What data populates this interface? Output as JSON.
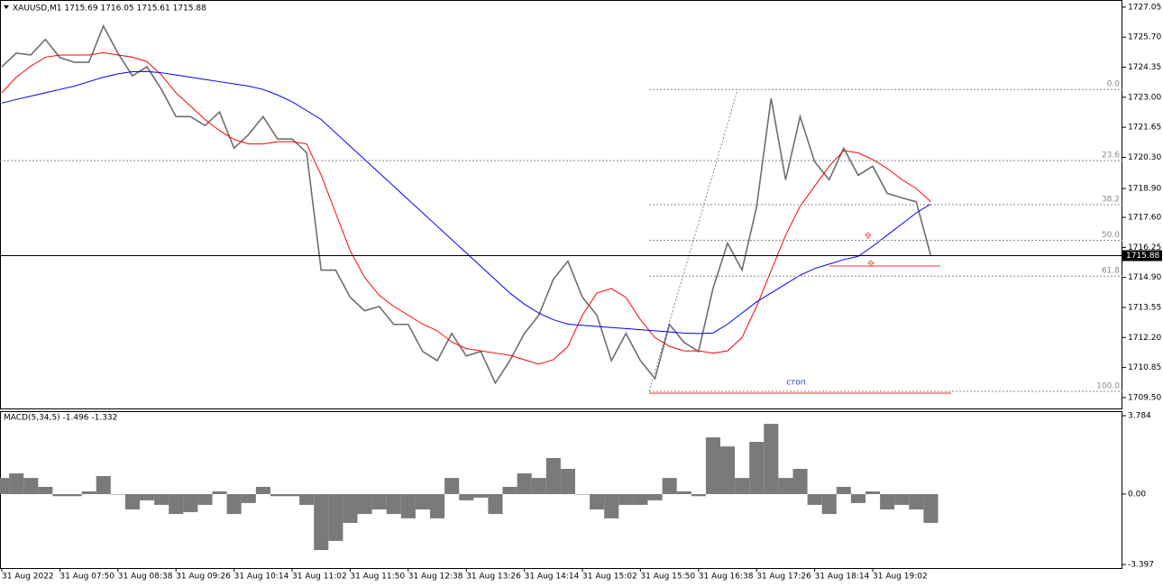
{
  "chart_data": [
    {
      "type": "line",
      "title": "XAUUSD,M1  1715.69 1716.05 1715.61 1715.88",
      "series": [
        {
          "color": "#6e6e6e",
          "values": [
            1724.37,
            1724.98,
            1724.9,
            1725.6,
            1724.78,
            1724.57,
            1724.57,
            1726.2,
            1724.98,
            1723.96,
            1724.37,
            1723.35,
            1722.13,
            1722.13,
            1721.73,
            1722.34,
            1720.71,
            1721.32,
            1722.13,
            1721.12,
            1721.12,
            1720.51,
            1715.23,
            1715.23,
            1714.01,
            1713.4,
            1713.6,
            1712.79,
            1712.79,
            1711.57,
            1711.16,
            1712.38,
            1711.37,
            1711.57,
            1710.15,
            1711.16,
            1712.38,
            1713.2,
            1714.82,
            1715.63,
            1714.01,
            1713.2,
            1711.16,
            1712.38,
            1711.16,
            1710.35,
            1712.79,
            1711.98,
            1711.57,
            1714.41,
            1716.44,
            1715.23,
            1718.07,
            1722.95,
            1719.29,
            1722.13,
            1720.1,
            1719.29,
            1720.71,
            1719.49,
            1719.9,
            1718.68,
            1718.48,
            1718.3,
            1715.88
          ]
        },
        {
          "color": "#ff0000",
          "values": [
            1723.2,
            1723.9,
            1724.4,
            1724.8,
            1724.9,
            1724.9,
            1724.9,
            1725.0,
            1724.9,
            1724.8,
            1724.6,
            1724.0,
            1723.2,
            1722.6,
            1722.0,
            1721.5,
            1721.1,
            1720.9,
            1720.9,
            1721.0,
            1721.0,
            1720.9,
            1719.5,
            1717.8,
            1716.1,
            1714.9,
            1714.1,
            1713.6,
            1713.2,
            1712.8,
            1712.5,
            1712.0,
            1711.7,
            1711.6,
            1711.5,
            1711.4,
            1711.2,
            1711.0,
            1711.2,
            1711.8,
            1713.2,
            1714.2,
            1714.4,
            1714.0,
            1713.0,
            1712.2,
            1711.8,
            1711.6,
            1711.6,
            1711.5,
            1711.6,
            1712.2,
            1713.6,
            1715.2,
            1716.8,
            1718.1,
            1719.0,
            1719.9,
            1720.6,
            1720.5,
            1720.2,
            1719.8,
            1719.3,
            1718.9,
            1718.3
          ]
        },
        {
          "color": "#0000ff",
          "values": [
            1722.74,
            1722.9,
            1723.05,
            1723.2,
            1723.35,
            1723.5,
            1723.7,
            1723.9,
            1724.05,
            1724.15,
            1724.16,
            1724.1,
            1724.0,
            1723.9,
            1723.8,
            1723.7,
            1723.6,
            1723.5,
            1723.35,
            1723.1,
            1722.8,
            1722.4,
            1722.0,
            1721.4,
            1720.8,
            1720.2,
            1719.6,
            1719.0,
            1718.4,
            1717.8,
            1717.2,
            1716.6,
            1716.0,
            1715.4,
            1714.8,
            1714.2,
            1713.7,
            1713.3,
            1713.0,
            1712.8,
            1712.75,
            1712.7,
            1712.65,
            1712.6,
            1712.55,
            1712.5,
            1712.45,
            1712.4,
            1712.38,
            1712.4,
            1712.8,
            1713.3,
            1713.8,
            1714.2,
            1714.6,
            1715.0,
            1715.3,
            1715.5,
            1715.7,
            1715.85,
            1716.3,
            1716.8,
            1717.3,
            1717.8,
            1718.2
          ]
        }
      ],
      "ylim": [
        1709.01,
        1727.33
      ],
      "yticks": [
        1727.05,
        {
          "value": 1725.7,
          "label": "1725.70"
        },
        1724.35,
        {
          "value": 1723,
          "label": "1723.00"
        },
        1721.65,
        {
          "value": 1720.3,
          "label": "1720.30"
        },
        {
          "value": 1718.9,
          "label": "1718.90"
        },
        {
          "value": 1717.6,
          "label": "1717.60"
        },
        1716.25,
        {
          "value": 1714.9,
          "label": "1714.90"
        },
        1713.55,
        {
          "value": 1712.2,
          "label": "1712.20"
        },
        1710.85,
        {
          "value": 1709.5,
          "label": "1709.50"
        }
      ],
      "current_price": 1715.88,
      "fib_levels": [
        {
          "value": 1723.35,
          "label": "0.0"
        },
        {
          "value": 1720.15,
          "label": "23.6"
        },
        {
          "value": 1718.17,
          "label": "38.2"
        },
        {
          "value": 1716.57,
          "label": "50.0"
        },
        {
          "value": 1714.96,
          "label": "61.8"
        },
        {
          "value": 1709.78,
          "label": "100.0"
        }
      ],
      "annotation": "стоп"
    },
    {
      "type": "bar",
      "title": "MACD(5,34,5) -1.496 -1.332",
      "color": "#7a7a7a",
      "categories": [
        "31 Aug 2022",
        null,
        null,
        null,
        "31 Aug 07:50",
        null,
        null,
        null,
        "31 Aug 08:38",
        null,
        null,
        null,
        "31 Aug 09:26",
        null,
        null,
        null,
        "31 Aug 10:14",
        null,
        null,
        null,
        "31 Aug 11:02",
        null,
        null,
        null,
        "31 Aug 11:50",
        null,
        null,
        null,
        "31 Aug 12:38",
        null,
        null,
        null,
        "31 Aug 13:26",
        null,
        null,
        null,
        "31 Aug 14:14",
        null,
        null,
        null,
        "31 Aug 15:02",
        null,
        null,
        null,
        "31 Aug 15:50",
        null,
        null,
        null,
        "31 Aug 16:38",
        null,
        null,
        null,
        "31 Aug 17:26",
        null,
        null,
        null,
        "31 Aug 18:14",
        null,
        null,
        null,
        "31 Aug 19:02",
        null,
        null,
        null,
        null
      ],
      "values": [
        0.78,
        1.0,
        0.78,
        0.35,
        -0.1,
        -0.1,
        0.13,
        0.87,
        0,
        -0.74,
        -0.3,
        -0.52,
        -0.96,
        -0.87,
        -0.52,
        0.13,
        -0.96,
        -0.43,
        0.35,
        -0.1,
        -0.1,
        -0.52,
        -2.7,
        -2.26,
        -1.39,
        -0.96,
        -0.74,
        -0.96,
        -1.17,
        -0.74,
        -1.17,
        0.78,
        -0.3,
        -0.17,
        -0.96,
        0.35,
        1.0,
        0.78,
        1.74,
        1.22,
        0,
        -0.74,
        -1.17,
        -0.52,
        -0.52,
        -0.3,
        0.78,
        0.13,
        -0.1,
        2.74,
        2.3,
        0.78,
        2.52,
        3.39,
        0.78,
        1.22,
        -0.52,
        -0.96,
        0.35,
        -0.43,
        0.13,
        -0.74,
        -0.52,
        -0.74,
        -1.39
      ],
      "ylim": [
        -3.57,
        3.96
      ],
      "yticks": [
        3.784,
        {
          "value": 0,
          "label": "0.00"
        },
        -3.397
      ]
    }
  ]
}
